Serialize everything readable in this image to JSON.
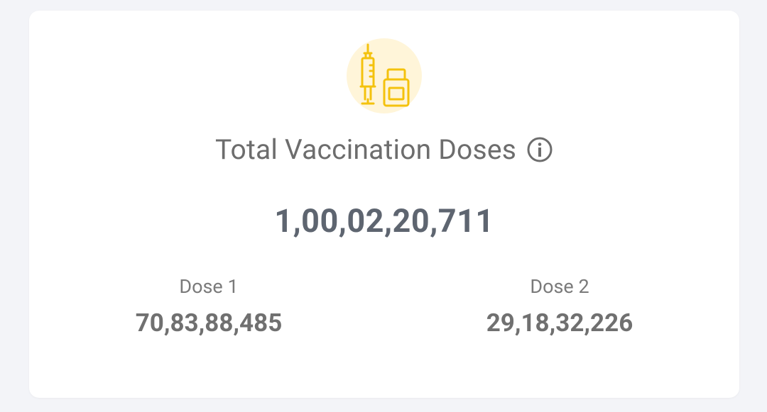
{
  "card": {
    "title": "Total Vaccination Doses",
    "total": "1,00,02,20,711",
    "doses": [
      {
        "label": "Dose 1",
        "value": "70,83,88,485"
      },
      {
        "label": "Dose 2",
        "value": "29,18,32,226"
      }
    ]
  }
}
